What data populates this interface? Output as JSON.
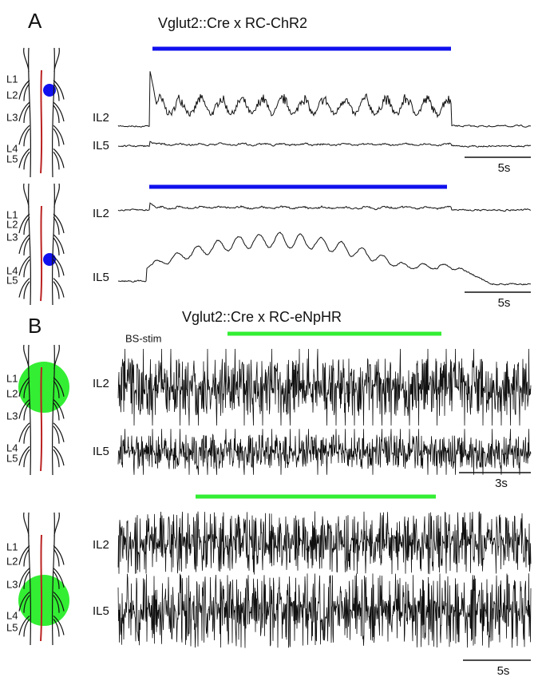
{
  "panels": [
    {
      "label": "A",
      "title": "Vglut2::Cre x RC-ChR2",
      "rows": [
        {
          "cord_levels": [
            "L1",
            "L2",
            "L3",
            "L4",
            "L5"
          ],
          "traces": [
            "IL2",
            "IL5"
          ],
          "scale_bar": "5s"
        },
        {
          "cord_levels": [
            "L1",
            "L2",
            "L3",
            "L4",
            "L5"
          ],
          "traces": [
            "IL2",
            "IL5"
          ],
          "scale_bar": "5s"
        }
      ]
    },
    {
      "label": "B",
      "title": "Vglut2::Cre x RC-eNpHR",
      "stim_label": "BS-stim",
      "rows": [
        {
          "cord_levels": [
            "L1",
            "L2",
            "L3",
            "L4",
            "L5"
          ],
          "traces": [
            "IL2",
            "IL5"
          ],
          "scale_bar": "3s"
        },
        {
          "cord_levels": [
            "L1",
            "L2",
            "L3",
            "L4",
            "L5"
          ],
          "traces": [
            "IL2",
            "IL5"
          ],
          "scale_bar": "5s"
        }
      ]
    }
  ]
}
